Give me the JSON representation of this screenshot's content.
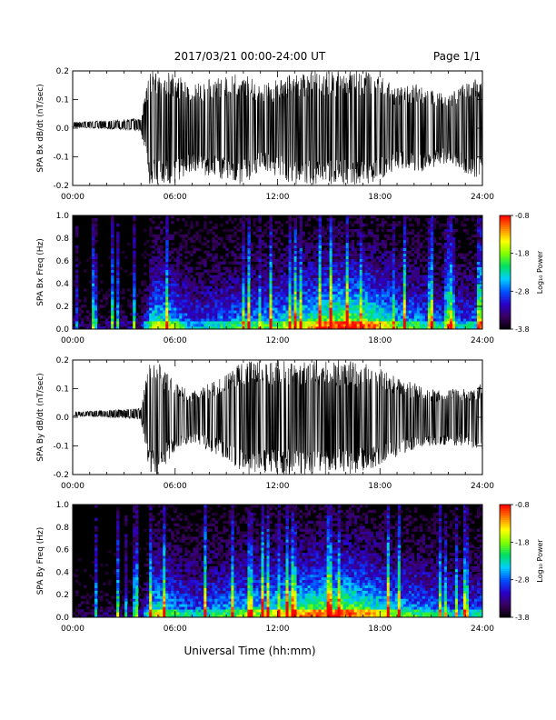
{
  "header": {
    "title": "2017/03/21  00:00-24:00 UT",
    "page": "Page 1/1"
  },
  "xaxis": {
    "label": "Universal Time (hh:mm)",
    "range": [
      0,
      24
    ],
    "tick_labels": [
      "00:00",
      "06:00",
      "12:00",
      "18:00",
      "24:00"
    ],
    "tick_hours": [
      0,
      6,
      12,
      18,
      24
    ]
  },
  "colorbar": {
    "label": "Log₁₀ Power",
    "tick_labels": [
      "-0.8",
      "-1.8",
      "-2.8",
      "-3.8"
    ],
    "ticks": [
      -0.8,
      -1.8,
      -2.8,
      -3.8
    ],
    "range": [
      -3.8,
      -0.8
    ],
    "colormap": [
      "#000000",
      "#3a0060",
      "#2a00c8",
      "#0050ff",
      "#00d0ff",
      "#00e060",
      "#80ff00",
      "#ffff00",
      "#ff8000",
      "#ff0000"
    ]
  },
  "colors": {
    "trace": "#000000",
    "background": "#000000"
  },
  "chart_data": [
    {
      "type": "line",
      "ylabel": "SPA Bx dB/dt (nT/sec)",
      "ylim": [
        -0.2,
        0.2
      ],
      "yticks": [
        -0.2,
        -0.1,
        0.0,
        0.1,
        0.2
      ],
      "ytick_labels": [
        "-0.2",
        "-0.1",
        "0.0",
        "0.1",
        "0.2"
      ],
      "series": [
        {
          "x": [
            0,
            1,
            2,
            3,
            4,
            4.5,
            5,
            6,
            7,
            8,
            9,
            10,
            11,
            12,
            13,
            14,
            15,
            16,
            17,
            18,
            19,
            20,
            21,
            22,
            23,
            24
          ],
          "amplitude": [
            0.01,
            0.012,
            0.015,
            0.018,
            0.025,
            0.2,
            0.2,
            0.19,
            0.15,
            0.17,
            0.18,
            0.2,
            0.15,
            0.17,
            0.2,
            0.2,
            0.2,
            0.2,
            0.2,
            0.19,
            0.14,
            0.16,
            0.14,
            0.12,
            0.16,
            0.18
          ]
        }
      ]
    },
    {
      "type": "heatmap",
      "ylabel": "SPA Bx Freq (Hz)",
      "ylim": [
        0,
        1.0
      ],
      "yticks": [
        0.0,
        0.2,
        0.4,
        0.6,
        0.8,
        1.0
      ],
      "ytick_labels": [
        "0.0",
        "0.2",
        "0.4",
        "0.6",
        "0.8",
        "1.0"
      ],
      "zlim": [
        -3.8,
        -0.8
      ],
      "activity": {
        "x": [
          0,
          1,
          2,
          3,
          4,
          4.5,
          5,
          6,
          7,
          8,
          9,
          10,
          11,
          12,
          13,
          14,
          15,
          16,
          17,
          18,
          19,
          20,
          21,
          22,
          23,
          24
        ],
        "level": [
          0.15,
          0.15,
          0.17,
          0.18,
          0.2,
          0.6,
          0.7,
          0.6,
          0.4,
          0.45,
          0.5,
          0.55,
          0.55,
          0.6,
          0.7,
          0.75,
          0.85,
          0.9,
          0.85,
          0.75,
          0.6,
          0.55,
          0.5,
          0.45,
          0.45,
          0.5
        ]
      }
    },
    {
      "type": "line",
      "ylabel": "SPA By dB/dt (nT/sec)",
      "ylim": [
        -0.2,
        0.2
      ],
      "yticks": [
        -0.2,
        -0.1,
        0.0,
        0.1,
        0.2
      ],
      "ytick_labels": [
        "-0.2",
        "-0.1",
        "0.0",
        "0.1",
        "0.2"
      ],
      "series": [
        {
          "x": [
            0,
            1,
            2,
            3,
            4,
            4.5,
            5,
            6,
            7,
            8,
            9,
            10,
            11,
            12,
            13,
            14,
            15,
            16,
            17,
            18,
            19,
            20,
            21,
            22,
            23,
            24
          ],
          "amplitude": [
            0.008,
            0.01,
            0.012,
            0.016,
            0.02,
            0.2,
            0.2,
            0.12,
            0.09,
            0.12,
            0.15,
            0.2,
            0.2,
            0.2,
            0.2,
            0.2,
            0.2,
            0.2,
            0.19,
            0.17,
            0.14,
            0.12,
            0.1,
            0.1,
            0.1,
            0.12
          ]
        }
      ]
    },
    {
      "type": "heatmap",
      "ylabel": "SPA By Freq (Hz)",
      "ylim": [
        0,
        1.0
      ],
      "yticks": [
        0.0,
        0.2,
        0.4,
        0.6,
        0.8,
        1.0
      ],
      "ytick_labels": [
        "0.0",
        "0.2",
        "0.4",
        "0.6",
        "0.8",
        "1.0"
      ],
      "zlim": [
        -3.8,
        -0.8
      ],
      "activity": {
        "x": [
          0,
          1,
          2,
          3,
          4,
          4.5,
          5,
          6,
          7,
          8,
          9,
          10,
          11,
          12,
          13,
          14,
          15,
          16,
          17,
          18,
          19,
          20,
          21,
          22,
          23,
          24
        ],
        "level": [
          0.12,
          0.12,
          0.14,
          0.15,
          0.18,
          0.6,
          0.7,
          0.55,
          0.45,
          0.5,
          0.55,
          0.6,
          0.65,
          0.7,
          0.75,
          0.8,
          0.85,
          0.85,
          0.8,
          0.7,
          0.6,
          0.55,
          0.5,
          0.45,
          0.45,
          0.5
        ]
      }
    }
  ]
}
